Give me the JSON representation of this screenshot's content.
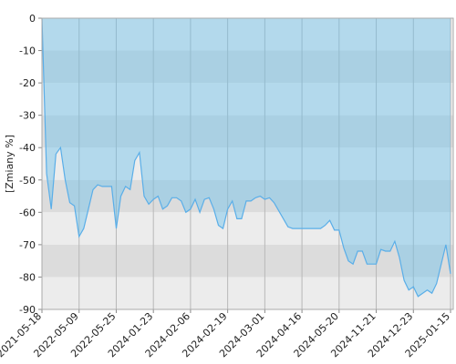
{
  "chart_data": {
    "type": "area",
    "y_label": "[Zmiany %]",
    "categories": [
      "2021-05-18",
      null,
      null,
      null,
      null,
      null,
      null,
      null,
      "2022-05-09",
      null,
      null,
      null,
      null,
      null,
      null,
      null,
      "2022-05-25",
      null,
      null,
      null,
      null,
      null,
      null,
      null,
      "2024-01-23",
      null,
      null,
      null,
      null,
      null,
      null,
      null,
      "2024-02-06",
      null,
      null,
      null,
      null,
      null,
      null,
      null,
      "2024-02-19",
      null,
      null,
      null,
      null,
      null,
      null,
      null,
      "2024-03-01",
      null,
      null,
      null,
      null,
      null,
      null,
      null,
      "2024-04-16",
      null,
      null,
      null,
      null,
      null,
      null,
      null,
      "2024-05-20",
      null,
      null,
      null,
      null,
      null,
      null,
      null,
      "2024-11-21",
      null,
      null,
      null,
      null,
      null,
      null,
      null,
      "2024-12-23",
      null,
      null,
      null,
      null,
      null,
      null,
      null,
      "2025-01-15"
    ],
    "values": [
      0,
      -48,
      -59,
      -42,
      -40,
      -50,
      -57,
      -58,
      -67.5,
      -65,
      -59,
      -53,
      -51.5,
      -52,
      -52,
      -52,
      -65,
      -55,
      -52,
      -53,
      -44,
      -41.5,
      -55,
      -57.5,
      -56,
      -55,
      -59,
      -58,
      -55.5,
      -55.5,
      -56.5,
      -60,
      -59,
      -56,
      -60,
      -56,
      -55.5,
      -59,
      -64,
      -65,
      -59,
      -56.5,
      -62,
      -62,
      -56.5,
      -56.5,
      -55.5,
      -55,
      -56,
      -55.5,
      -57,
      -59.5,
      -62,
      -64.5,
      -65,
      -65,
      -65,
      -65,
      -65,
      -65,
      -65,
      -64,
      -62.5,
      -65.5,
      -65.5,
      -71,
      -75,
      -76,
      -72,
      -72,
      -76,
      -76,
      -76,
      -71.5,
      -72,
      -72,
      -69,
      -74,
      -81,
      -84,
      -83,
      -86,
      -85,
      -84,
      -85,
      -82,
      -76,
      -70,
      -79
    ],
    "color": "#5aaee8",
    "ylim": [
      0,
      -90
    ],
    "yticks": [
      0,
      -10,
      -20,
      -30,
      -40,
      -50,
      -60,
      -70,
      -80,
      -90
    ],
    "grid": true
  }
}
